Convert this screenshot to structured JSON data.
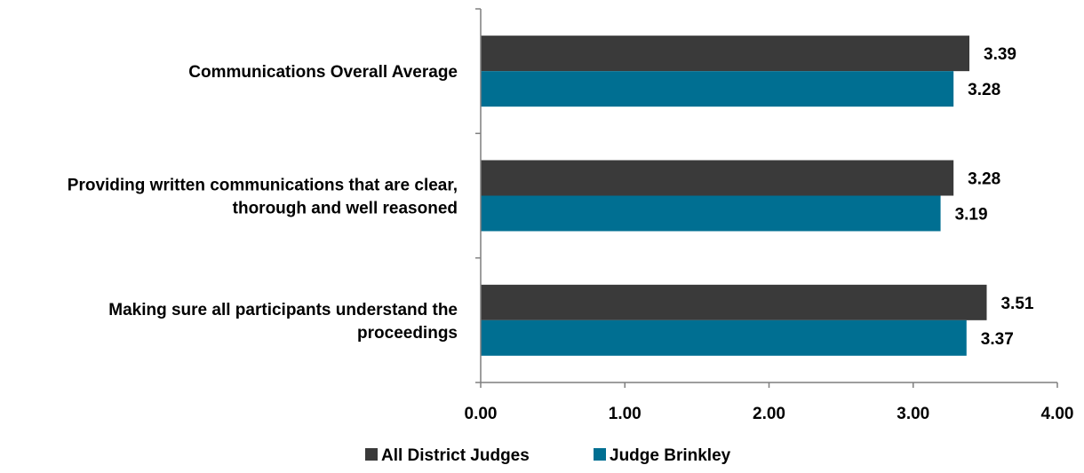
{
  "chart_data": {
    "type": "bar",
    "orientation": "horizontal",
    "categories": [
      "Communications Overall Average",
      "Providing written communications that are clear, thorough and well reasoned",
      "Making sure all participants understand the proceedings"
    ],
    "category_lines": [
      [
        "Communications Overall Average"
      ],
      [
        "Providing written communications that are clear,",
        "thorough and well reasoned"
      ],
      [
        "Making sure all participants understand the",
        "proceedings"
      ]
    ],
    "series": [
      {
        "name": "All District Judges",
        "color": "#3a3a3a",
        "values": [
          3.39,
          3.28,
          3.51
        ],
        "labels": [
          "3.39",
          "3.28",
          "3.51"
        ]
      },
      {
        "name": "Judge Brinkley",
        "color": "#006f92",
        "values": [
          3.28,
          3.19,
          3.37
        ],
        "labels": [
          "3.28",
          "3.19",
          "3.37"
        ]
      }
    ],
    "xlim": [
      0,
      4
    ],
    "xticks": [
      0,
      1,
      2,
      3,
      4
    ],
    "xtick_labels": [
      "0.00",
      "1.00",
      "2.00",
      "3.00",
      "4.00"
    ],
    "grid": false,
    "legend_position": "bottom"
  }
}
